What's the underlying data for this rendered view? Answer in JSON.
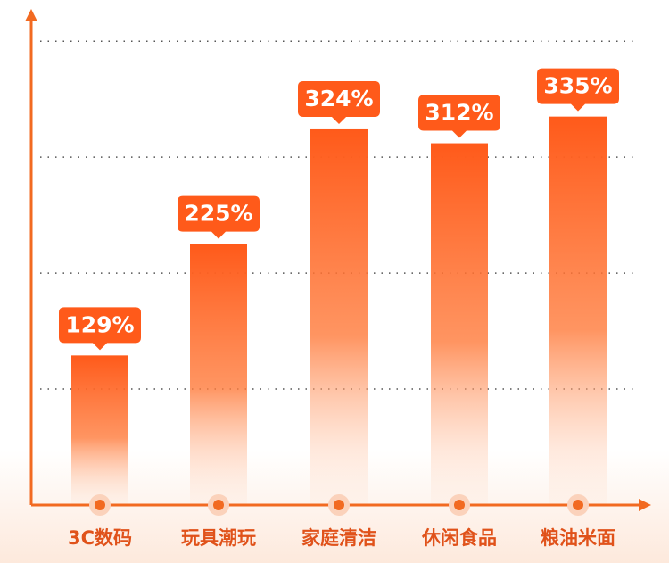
{
  "chart_data": {
    "type": "bar",
    "categories": [
      "3C数码",
      "玩具潮玩",
      "家庭清洁",
      "休闲食品",
      "粮油米面"
    ],
    "values": [
      129,
      225,
      324,
      312,
      335
    ],
    "value_labels": [
      "129%",
      "225%",
      "324%",
      "312%",
      "335%"
    ],
    "color": "#ff5a1a",
    "ylim": [
      0,
      424
    ],
    "yticks": [
      100,
      200,
      300,
      400
    ],
    "grid": true
  }
}
